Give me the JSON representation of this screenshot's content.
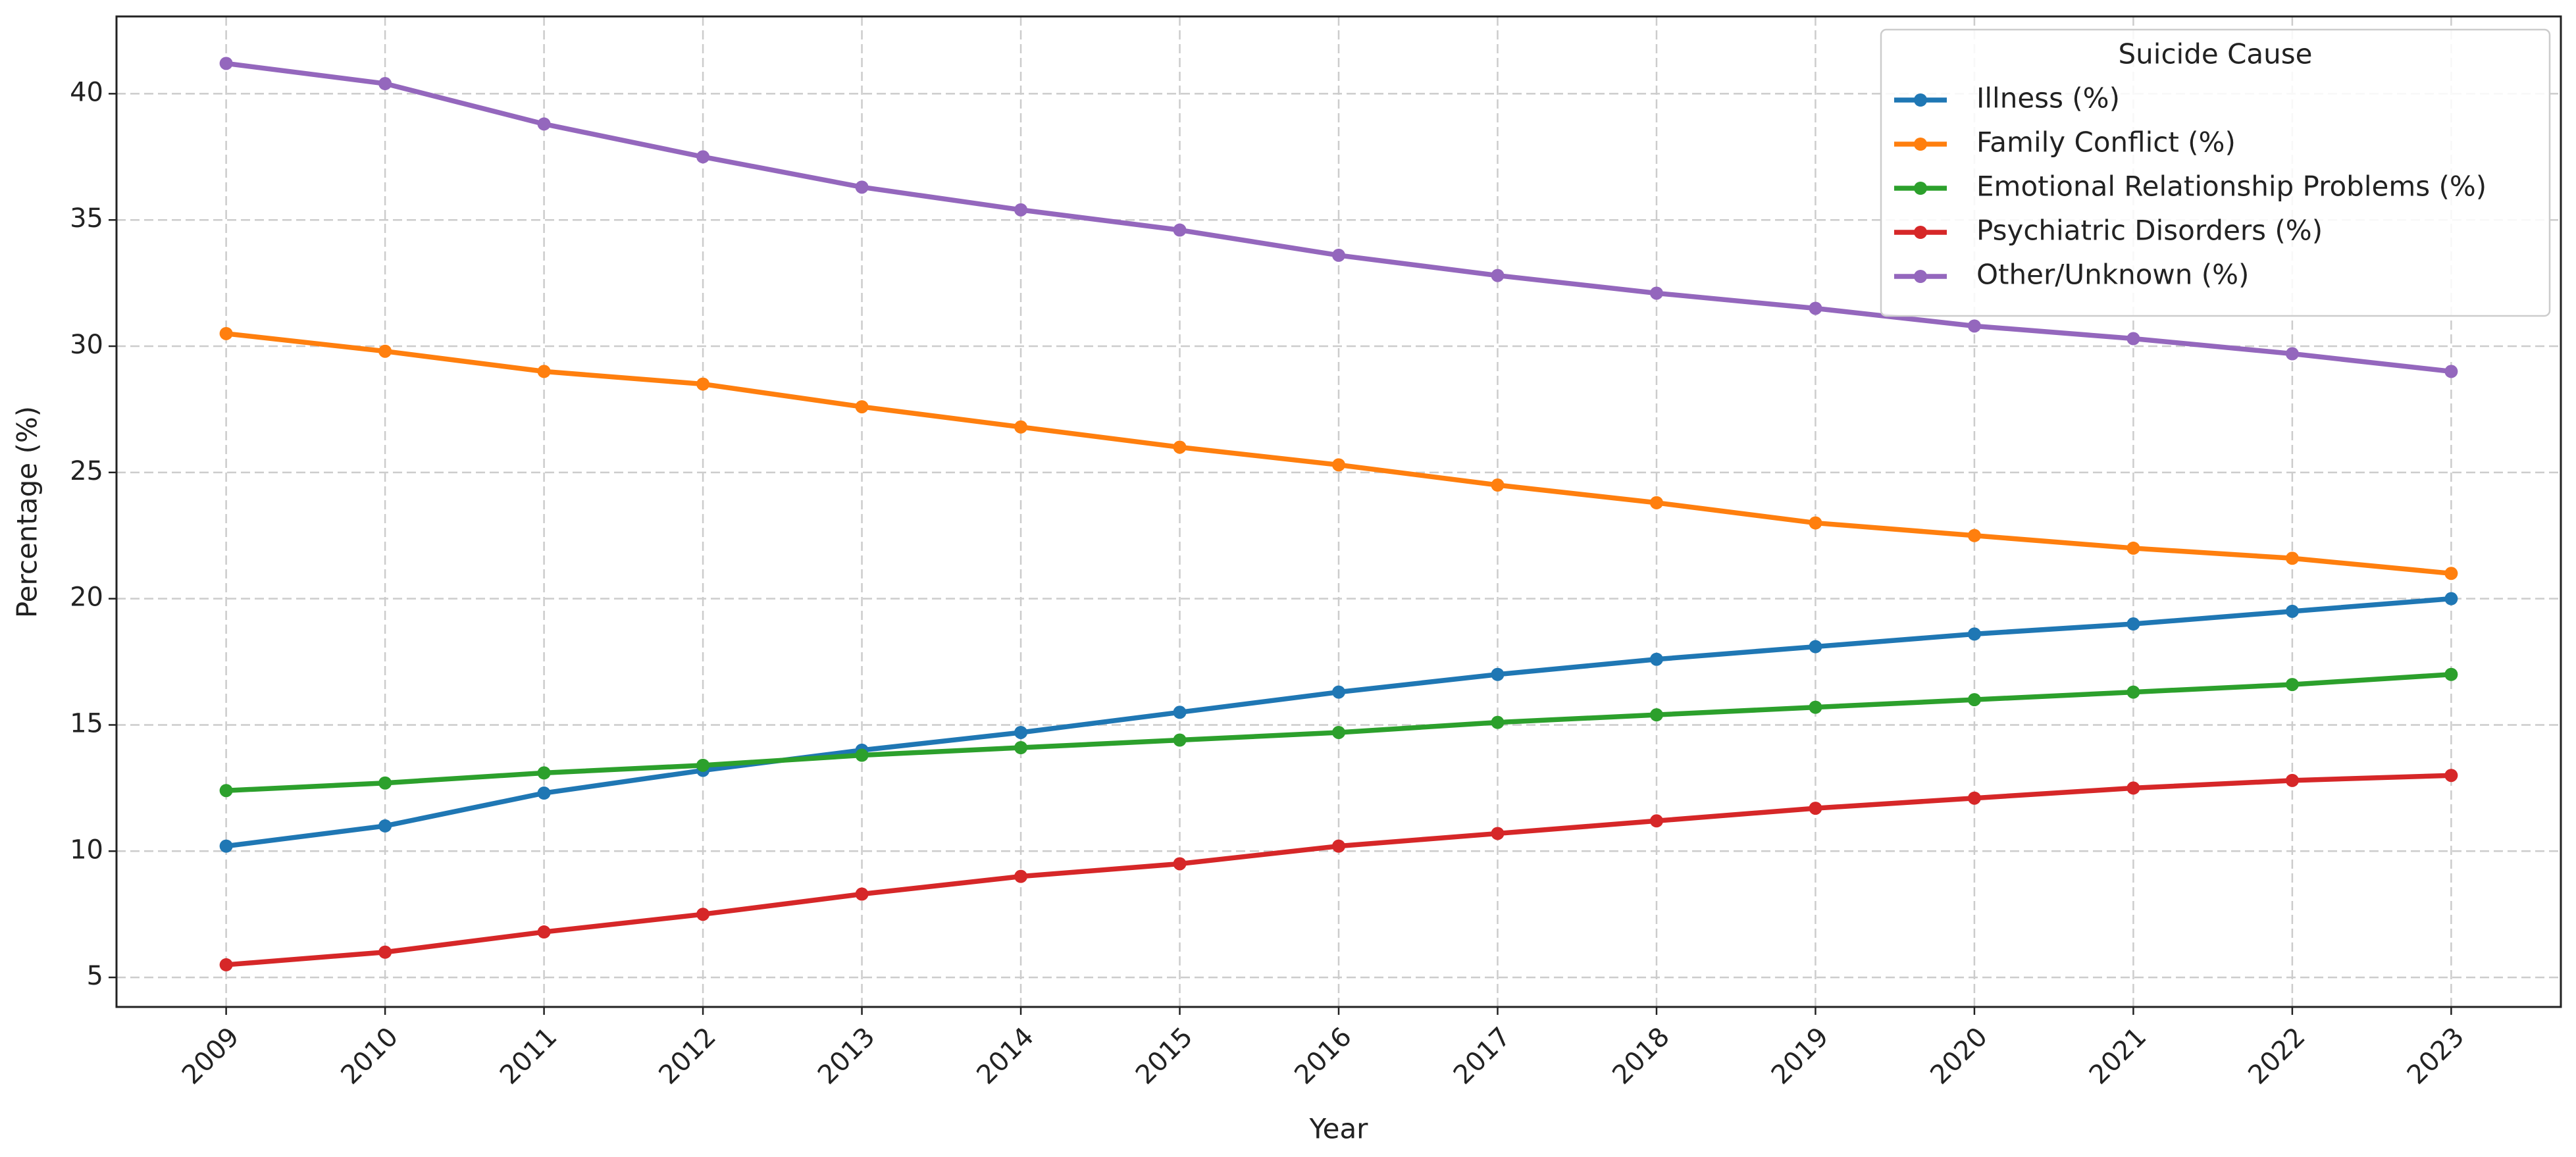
{
  "chart_data": {
    "type": "line",
    "x_label": "Year",
    "y_label": "Percentage (%)",
    "x": [
      2009,
      2010,
      2011,
      2012,
      2013,
      2014,
      2015,
      2016,
      2017,
      2018,
      2019,
      2020,
      2021,
      2022,
      2023
    ],
    "xlim": [
      2008.31,
      2023.69
    ],
    "xticks": [
      2009,
      2010,
      2011,
      2012,
      2013,
      2014,
      2015,
      2016,
      2017,
      2018,
      2019,
      2020,
      2021,
      2022,
      2023
    ],
    "ylim": [
      3.83,
      43.06
    ],
    "yticks": [
      5,
      10,
      15,
      20,
      25,
      30,
      35,
      40
    ],
    "grid": true,
    "legend_title": "Suicide Cause",
    "legend_position": "upper-right",
    "series": [
      {
        "name": "Illness (%)",
        "color": "#1f77b4",
        "values": [
          10.2,
          11.0,
          12.3,
          13.2,
          14.0,
          14.7,
          15.5,
          16.3,
          17.0,
          17.6,
          18.1,
          18.6,
          19.0,
          19.5,
          20.0
        ]
      },
      {
        "name": "Family Conflict (%)",
        "color": "#ff7f0e",
        "values": [
          30.5,
          29.8,
          29.0,
          28.5,
          27.6,
          26.8,
          26.0,
          25.3,
          24.5,
          23.8,
          23.0,
          22.5,
          22.0,
          21.6,
          21.0
        ]
      },
      {
        "name": "Emotional Relationship Problems (%)",
        "color": "#2ca02c",
        "values": [
          12.4,
          12.7,
          13.1,
          13.4,
          13.8,
          14.1,
          14.4,
          14.7,
          15.1,
          15.4,
          15.7,
          16.0,
          16.3,
          16.6,
          17.0
        ]
      },
      {
        "name": "Psychiatric Disorders (%)",
        "color": "#d62728",
        "values": [
          5.5,
          6.0,
          6.8,
          7.5,
          8.3,
          9.0,
          9.5,
          10.2,
          10.7,
          11.2,
          11.7,
          12.1,
          12.5,
          12.8,
          13.0
        ]
      },
      {
        "name": "Other/Unknown (%)",
        "color": "#9467bd",
        "values": [
          41.2,
          40.4,
          38.8,
          37.5,
          36.3,
          35.4,
          34.6,
          33.6,
          32.8,
          32.1,
          31.5,
          30.8,
          30.3,
          29.7,
          29.0
        ]
      }
    ]
  }
}
